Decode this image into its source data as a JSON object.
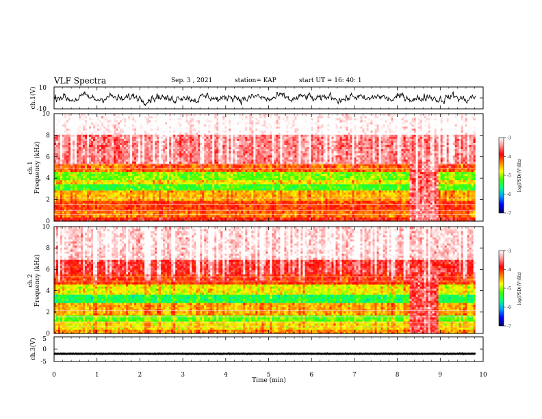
{
  "header": {
    "title": "VLF Spectra",
    "date": "Sep. 3 , 2021",
    "station": "station= KAP",
    "start_ut": "start UT = 16: 40: 1"
  },
  "colors": {
    "spectrogram_scale": [
      "#000060",
      "#0000ff",
      "#00a0ff",
      "#00ff80",
      "#40ff00",
      "#ffff00",
      "#ff8000",
      "#ff0000",
      "#ff9090",
      "#ffffff"
    ],
    "trace": "#000000",
    "axes": "#000000"
  },
  "chart_data": [
    {
      "type": "line",
      "panel": "ch1_waveform",
      "ylabel": "ch.1(V)",
      "ylim": [
        -10,
        10
      ],
      "yticks": [
        "10",
        "-10"
      ],
      "xlim": [
        0,
        10
      ],
      "x_extent": [
        0,
        9.82
      ],
      "series_note": "noisy waveform trace roughly between -7 and +8 V"
    },
    {
      "type": "heatmap",
      "panel": "ch1_spectrogram",
      "ylabel": "ch.1\nFrequency (kHz)",
      "ylabel_line1": "ch.1",
      "ylabel_line2": "Frequency (kHz)",
      "ylim": [
        0,
        10
      ],
      "yticks": [
        "0",
        "2",
        "4",
        "6",
        "8",
        "10"
      ],
      "xlim": [
        0,
        10
      ],
      "x_extent": [
        0,
        9.82
      ],
      "colorbar": {
        "label": "log(PSD)(V²/Hz)",
        "range": [
          -7,
          -3
        ],
        "ticks": [
          "-3",
          "-4",
          "-5",
          "-6",
          "-7"
        ]
      },
      "bands_logpsd": [
        {
          "f": [
            0,
            0.3
          ],
          "v": -4.0
        },
        {
          "f": [
            0.3,
            1.0
          ],
          "v": -4.4
        },
        {
          "f": [
            1.0,
            2.0
          ],
          "v": -4.2
        },
        {
          "f": [
            2.0,
            2.8
          ],
          "v": -4.6
        },
        {
          "f": [
            2.8,
            3.4
          ],
          "v": -5.4
        },
        {
          "f": [
            3.4,
            3.8
          ],
          "v": -4.8
        },
        {
          "f": [
            3.8,
            4.6
          ],
          "v": -5.2
        },
        {
          "f": [
            4.6,
            5.4
          ],
          "v": -4.4
        },
        {
          "f": [
            5.4,
            6.5
          ],
          "v": -3.6
        },
        {
          "f": [
            6.5,
            8.0
          ],
          "v": -3.6
        },
        {
          "f": [
            8.0,
            10.0
          ],
          "v": -3.1
        }
      ],
      "event_window_min": [
        8.3,
        8.95
      ],
      "event_logpsd": -3.6
    },
    {
      "type": "heatmap",
      "panel": "ch2_spectrogram",
      "ylabel": "ch.2\nFrequency (kHz)",
      "ylabel_line1": "ch.2",
      "ylabel_line2": "Frequency (kHz)",
      "ylim": [
        0,
        10
      ],
      "yticks": [
        "0",
        "2",
        "4",
        "6",
        "8",
        "10"
      ],
      "xlim": [
        0,
        10
      ],
      "x_extent": [
        0,
        9.82
      ],
      "colorbar": {
        "label": "log(PSD)(V²/Hz)",
        "range": [
          -7,
          -3
        ],
        "ticks": [
          "-3",
          "-4",
          "-5",
          "-6",
          "-7"
        ]
      },
      "bands_logpsd": [
        {
          "f": [
            0,
            0.4
          ],
          "v": -4.5
        },
        {
          "f": [
            0.4,
            1.2
          ],
          "v": -4.8
        },
        {
          "f": [
            1.2,
            1.8
          ],
          "v": -5.3
        },
        {
          "f": [
            1.8,
            2.8
          ],
          "v": -4.6
        },
        {
          "f": [
            2.8,
            3.6
          ],
          "v": -5.6
        },
        {
          "f": [
            3.6,
            4.6
          ],
          "v": -4.9
        },
        {
          "f": [
            4.6,
            5.6
          ],
          "v": -4.2
        },
        {
          "f": [
            5.6,
            7.0
          ],
          "v": -3.9
        },
        {
          "f": [
            7.0,
            10.0
          ],
          "v": -3.3
        }
      ],
      "event_window_min": [
        8.3,
        8.95
      ],
      "event_logpsd": -3.7
    },
    {
      "type": "line",
      "panel": "ch3_waveform",
      "ylabel": "ch.3(V)",
      "ylim": [
        -5,
        5
      ],
      "yticks": [
        "5",
        "0",
        "-5"
      ],
      "xlim": [
        0,
        10
      ],
      "x_extent": [
        0,
        9.82
      ],
      "xlabel": "Time (min)",
      "xticks": [
        "0",
        "1",
        "2",
        "3",
        "4",
        "5",
        "6",
        "7",
        "8",
        "9",
        "10"
      ],
      "series_note": "dense trace oscillating between about -2.3 and -1.4 V"
    }
  ]
}
